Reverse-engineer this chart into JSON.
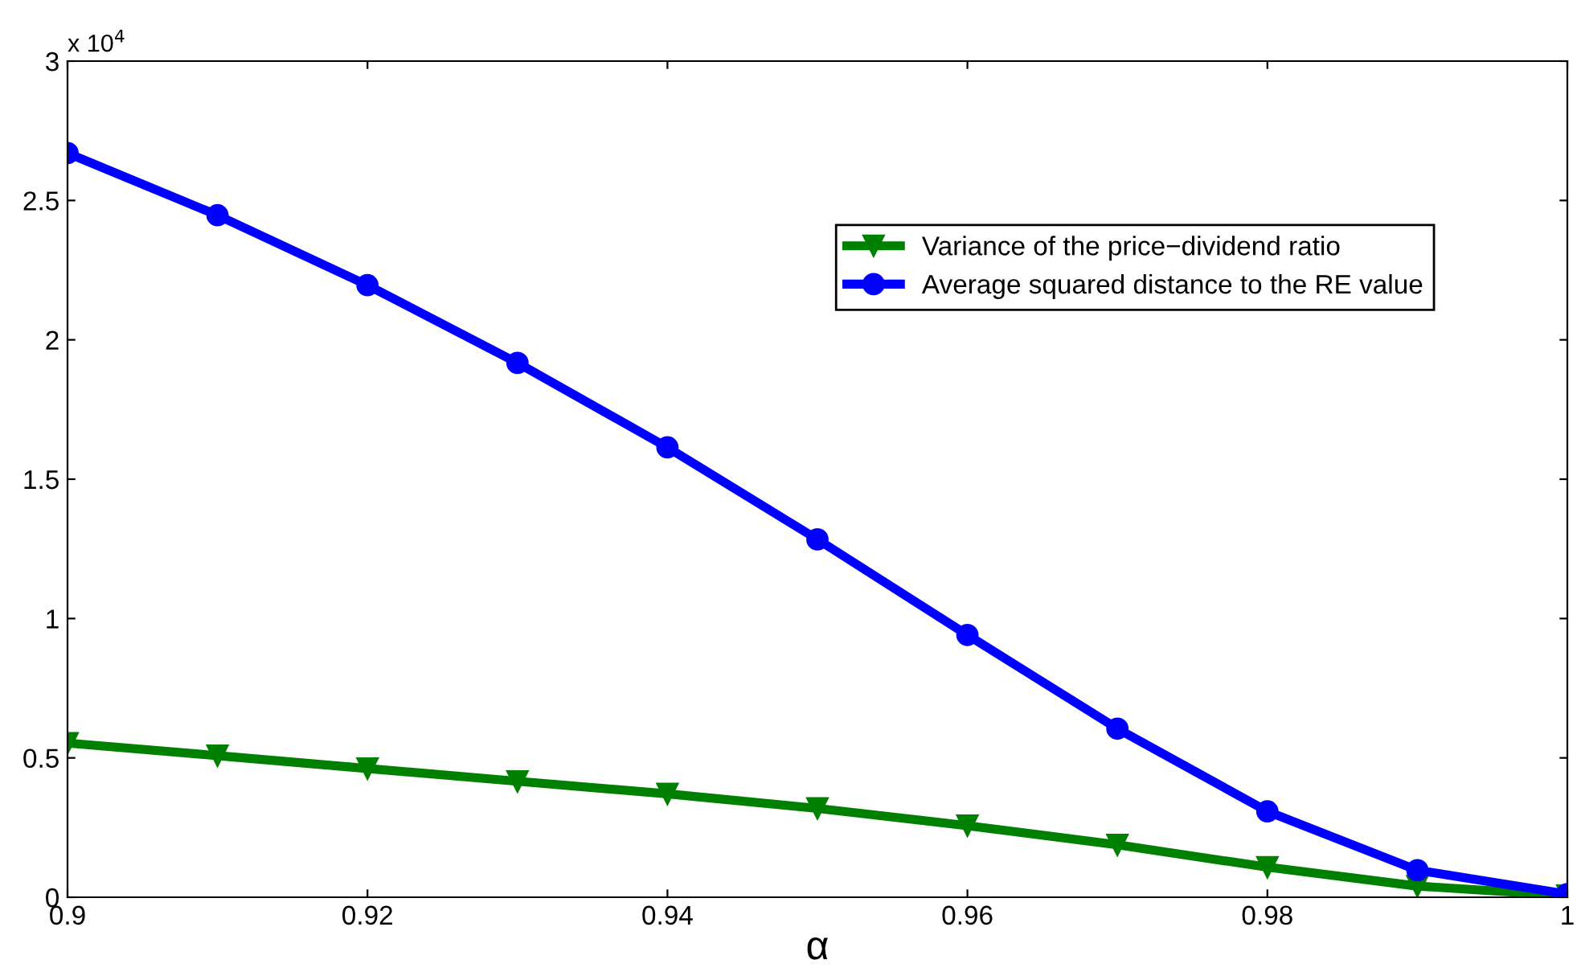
{
  "chart_data": {
    "type": "line",
    "xlabel": "α",
    "x": [
      0.9,
      0.91,
      0.92,
      0.93,
      0.94,
      0.95,
      0.96,
      0.97,
      0.98,
      0.99,
      1.0
    ],
    "series": [
      {
        "name": "Variance of the price−dividend ratio",
        "color": "#008000",
        "marker": "triangle",
        "values": [
          0.553,
          0.508,
          0.462,
          0.416,
          0.371,
          0.319,
          0.257,
          0.188,
          0.108,
          0.04,
          0.006
        ]
      },
      {
        "name": "Average squared distance to the RE value",
        "color": "#0000ff",
        "marker": "circle",
        "values": [
          2.67,
          2.447,
          2.196,
          1.917,
          1.614,
          1.284,
          0.941,
          0.605,
          0.308,
          0.097,
          0.011
        ]
      }
    ],
    "xlim": [
      0.9,
      1
    ],
    "xticks": [
      0.9,
      0.92,
      0.94,
      0.96,
      0.98,
      1
    ],
    "ylim": [
      0,
      3
    ],
    "yticks": [
      0,
      0.5,
      1,
      1.5,
      2,
      2.5,
      3
    ],
    "annotations": [
      "x 10$^{4}$"
    ],
    "legend": "top right",
    "grid": false,
    "line_style": "solid"
  }
}
